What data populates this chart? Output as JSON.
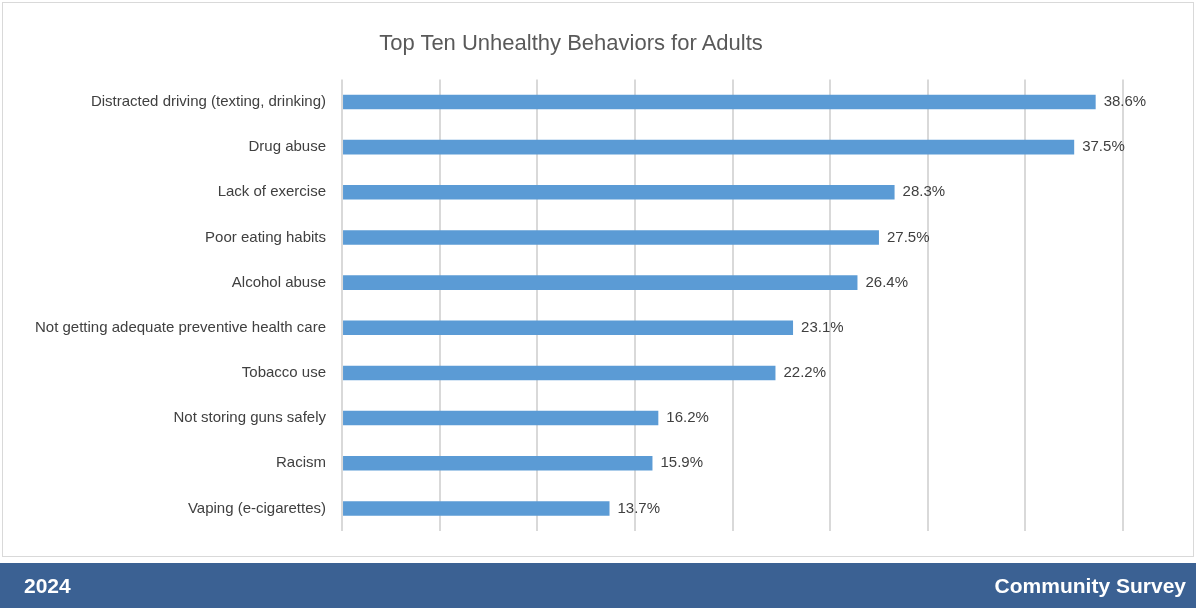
{
  "chart_data": {
    "type": "bar",
    "orientation": "horizontal",
    "title": "Top Ten Unhealthy Behaviors for Adults",
    "categories": [
      "Distracted driving (texting, drinking)",
      "Drug abuse",
      "Lack of exercise",
      "Poor eating habits",
      "Alcohol abuse",
      "Not getting adequate preventive health care",
      "Tobacco use",
      "Not storing guns safely",
      "Racism",
      "Vaping (e-cigarettes)"
    ],
    "values": [
      38.6,
      37.5,
      28.3,
      27.5,
      26.4,
      23.1,
      22.2,
      16.2,
      15.9,
      13.7
    ],
    "value_labels": [
      "38.6%",
      "37.5%",
      "28.3%",
      "27.5%",
      "26.4%",
      "23.1%",
      "22.2%",
      "16.2%",
      "15.9%",
      "13.7%"
    ],
    "color": "#5b9bd5",
    "xlim": [
      0,
      40
    ],
    "xticks": [
      {
        "value": 0,
        "label": null
      },
      {
        "value": 5,
        "label": null
      },
      {
        "value": 10,
        "label": null
      },
      {
        "value": 15,
        "label": null
      },
      {
        "value": 20,
        "label": null
      },
      {
        "value": 25,
        "label": null
      },
      {
        "value": 30,
        "label": null
      },
      {
        "value": 35,
        "label": null
      },
      {
        "value": 40,
        "label": null
      }
    ],
    "grid": "x",
    "tick_labels": "y",
    "annotations": [
      "2024",
      "Community Survey"
    ]
  }
}
